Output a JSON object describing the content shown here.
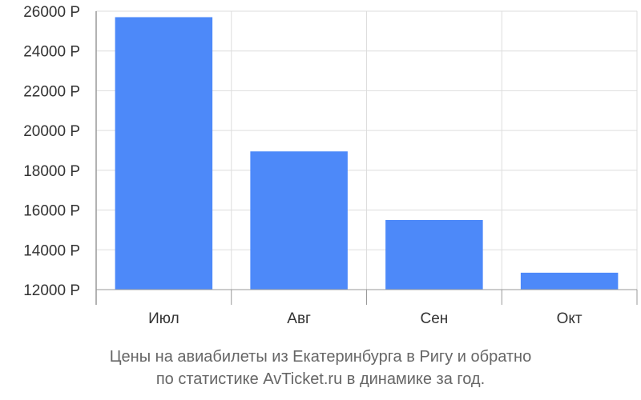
{
  "chart_data": {
    "type": "bar",
    "categories": [
      "Июл",
      "Авг",
      "Сен",
      "Окт"
    ],
    "values": [
      25700,
      18950,
      15500,
      12850
    ],
    "ylim": [
      12000,
      26000
    ],
    "yticks": [
      12000,
      14000,
      16000,
      18000,
      20000,
      22000,
      24000,
      26000
    ],
    "ytick_labels": [
      "12000 Р",
      "14000 Р",
      "16000 Р",
      "18000 Р",
      "20000 Р",
      "22000 Р",
      "24000 Р",
      "26000 Р"
    ],
    "title": "",
    "xlabel": "",
    "ylabel": "",
    "grid": true,
    "bar_color": "#4d89f9",
    "grid_color": "#dddddd",
    "axis_color": "#999999"
  },
  "caption": {
    "line1": "Цены на авиабилеты из Екатеринбурга в Ригу и обратно",
    "line2": "по статистике AvTicket.ru в динамике за год."
  }
}
